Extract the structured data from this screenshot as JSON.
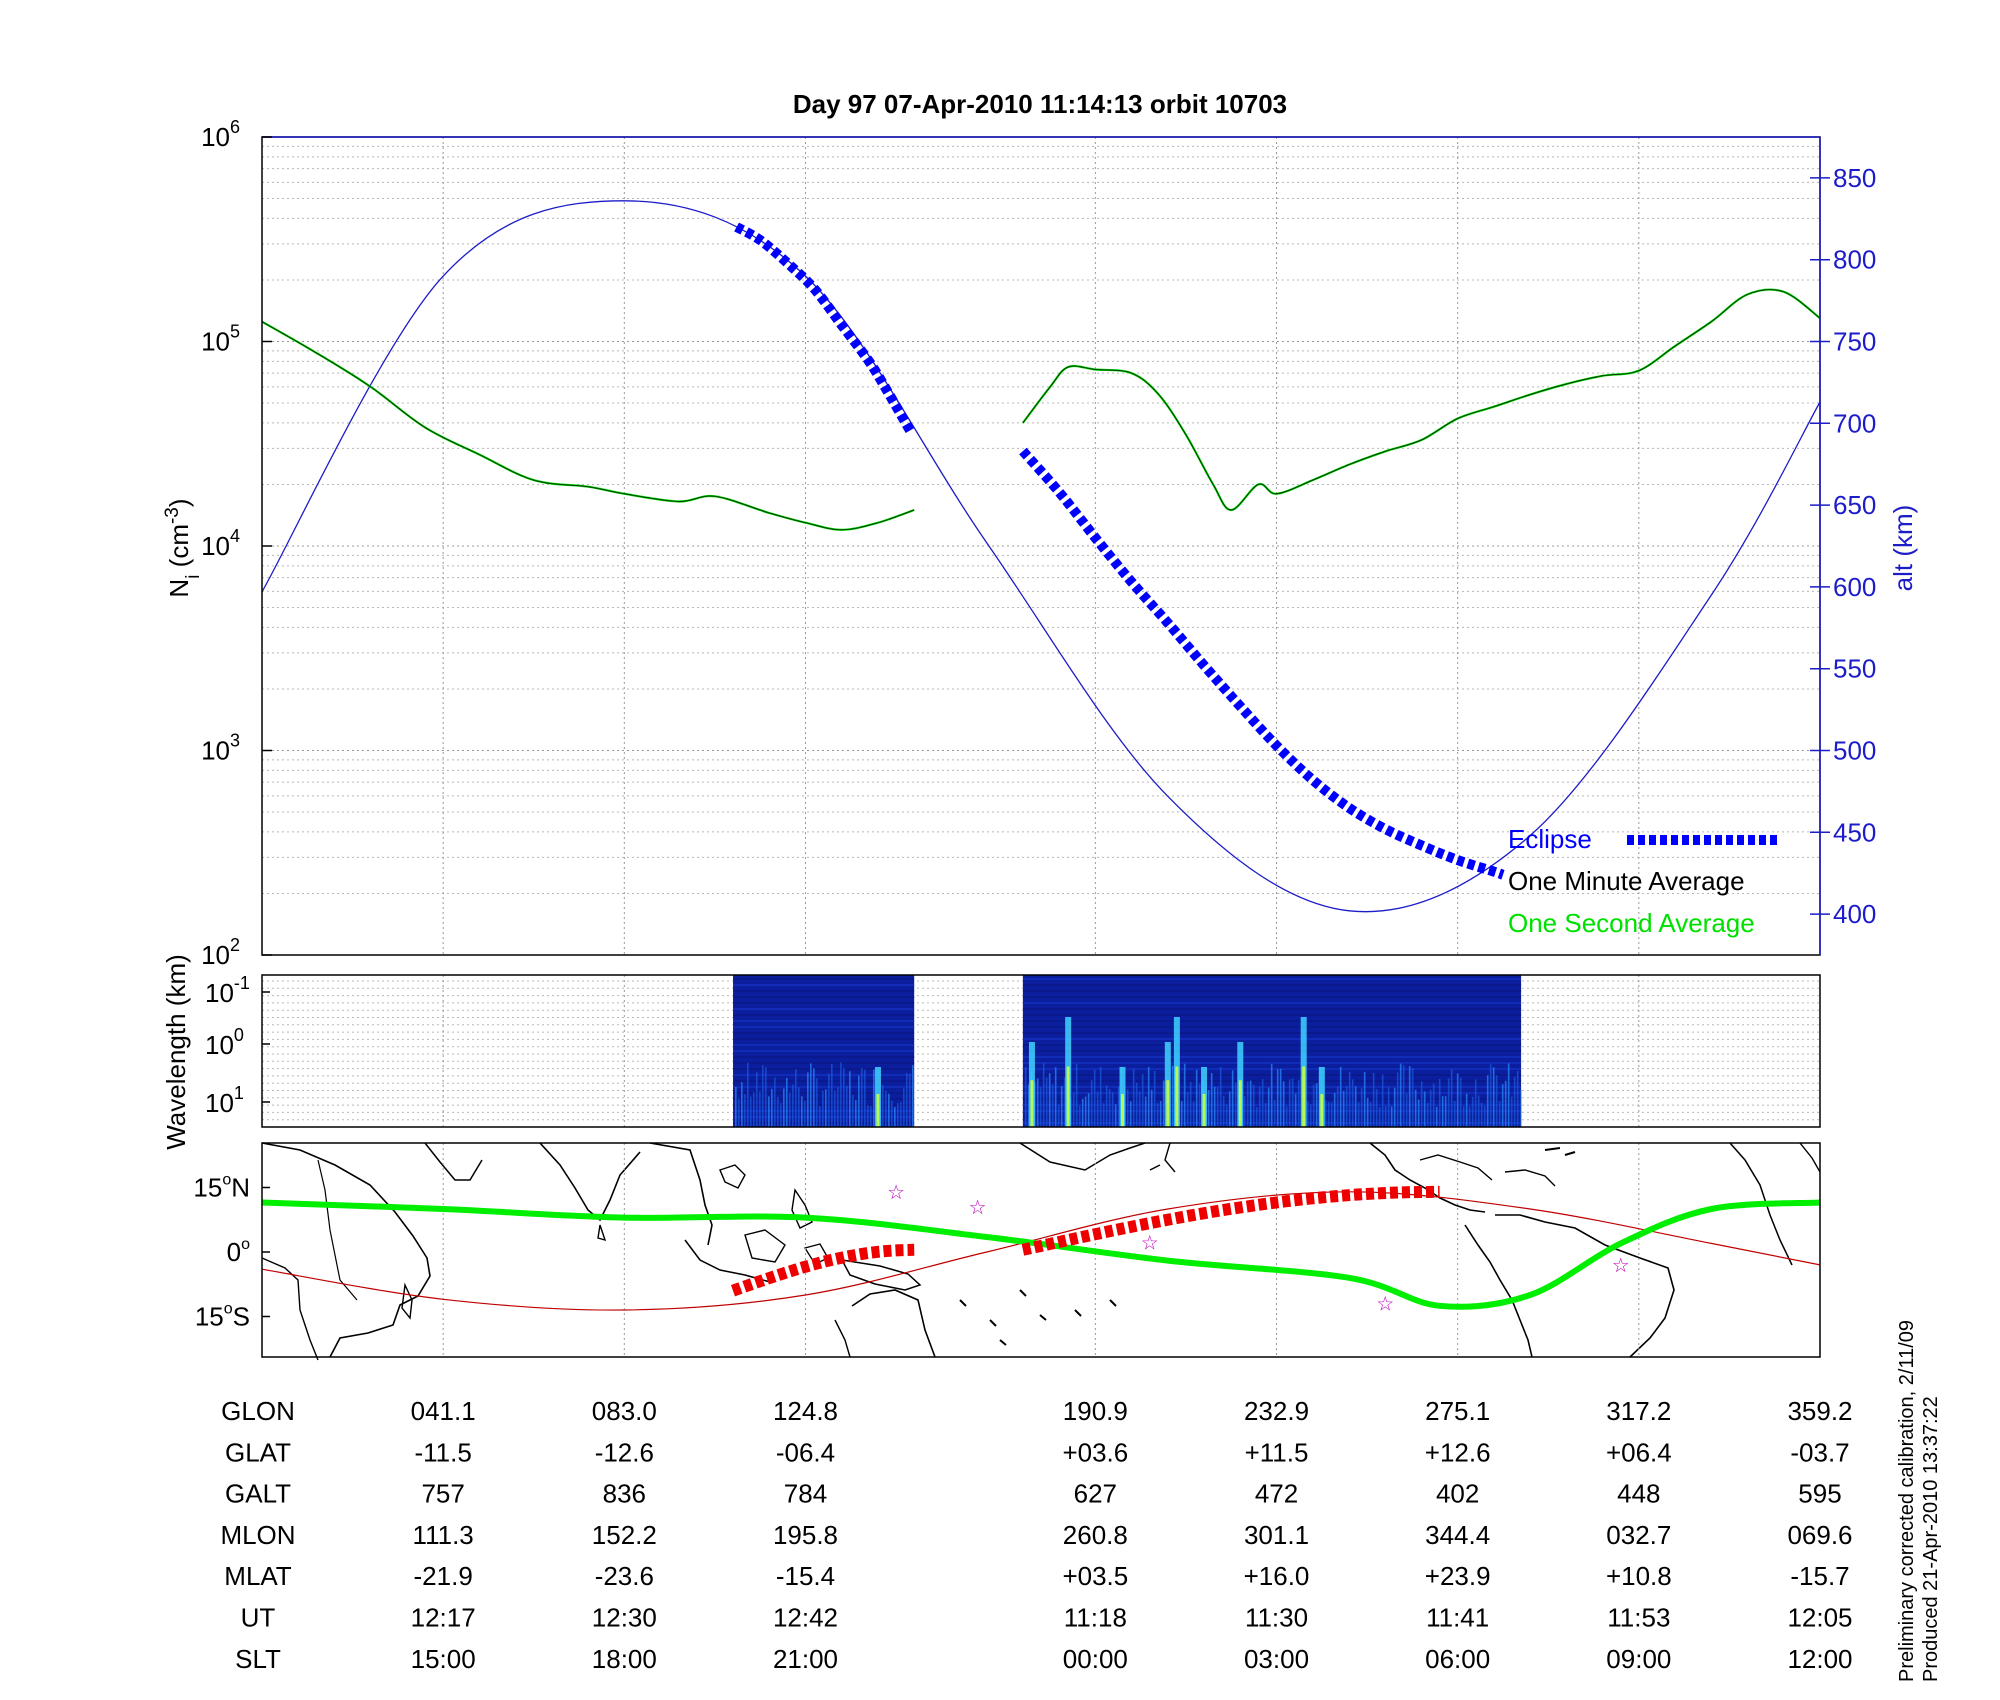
{
  "title": "Day 97  07-Apr-2010 11:14:13   orbit 10703",
  "side_note": [
    "Preliminary corrected calibration, 2/11/09",
    "Produced 21-Apr-2010 13:37:22"
  ],
  "colors": {
    "alt_axis": "#1c1cc8",
    "eclipse": "#0000ff",
    "one_minute": "#000000",
    "one_second": "#00e000",
    "orbit_track": "#00ee00",
    "orbit_eclipse": "#ee0000",
    "reference_line": "#c00000",
    "stars": "#c000c0"
  },
  "chart_data": [
    {
      "type": "line",
      "ylabel_main": "N",
      "ylabel_sub": "i",
      "ylabel_unit": " (cm",
      "ylabel_exp": "-3",
      "ylabel_close": ")",
      "y_scale": "log",
      "ylim": [
        100,
        1000000
      ],
      "y_ticks": [
        {
          "value": 100,
          "base": "10",
          "exp": "2"
        },
        {
          "value": 1000,
          "base": "10",
          "exp": "3"
        },
        {
          "value": 10000,
          "base": "10",
          "exp": "4"
        },
        {
          "value": 100000,
          "base": "10",
          "exp": "5"
        },
        {
          "value": 1000000,
          "base": "10",
          "exp": "6"
        }
      ],
      "y2label": "alt (km)",
      "y2lim": [
        375,
        875
      ],
      "y2_ticks": [
        400,
        450,
        500,
        550,
        600,
        650,
        700,
        750,
        800,
        850
      ],
      "xlim": [
        0,
        8.6
      ],
      "grid": true,
      "legend_position": "bottom-right",
      "legend": [
        "Eclipse",
        "One Minute Average",
        "One Second Average"
      ],
      "altitude_km": [
        [
          0,
          597
        ],
        [
          1,
          790
        ],
        [
          2,
          836
        ],
        [
          3,
          790
        ],
        [
          4,
          627
        ],
        [
          5,
          472
        ],
        [
          6,
          402
        ],
        [
          7,
          448
        ],
        [
          8,
          595
        ],
        [
          8.6,
          713
        ]
      ],
      "eclipse_segments": [
        {
          "x": [
            2.62,
            2.75,
            2.9,
            3.05,
            3.2,
            3.35,
            3.45,
            3.58
          ],
          "alt_km": [
            820,
            812,
            798,
            782,
            760,
            738,
            720,
            695
          ]
        },
        {
          "x": [
            4.2,
            4.4,
            4.6,
            4.8,
            5.0,
            5.2,
            5.4,
            5.6,
            5.8,
            6.0,
            6.2,
            6.4,
            6.6,
            6.8,
            6.85
          ],
          "alt_km": [
            683,
            658,
            630,
            603,
            578,
            552,
            527,
            503,
            482,
            465,
            452,
            442,
            433,
            426,
            424
          ]
        }
      ],
      "ni_one_minute_segments": [
        {
          "x": [
            0,
            0.3,
            0.6,
            0.9,
            1.2,
            1.5,
            1.8,
            2.0,
            2.3,
            2.5,
            2.8,
            3.0,
            3.2,
            3.4,
            3.6
          ],
          "y": [
            125000,
            88000,
            60000,
            38000,
            28000,
            21000,
            19500,
            18000,
            16500,
            17500,
            14500,
            13000,
            12000,
            13000,
            15000
          ]
        },
        {
          "x": [
            4.2,
            4.35,
            4.45,
            4.6,
            4.8,
            4.95,
            5.1,
            5.25,
            5.35,
            5.5,
            5.6,
            5.8,
            6.0,
            6.2,
            6.4,
            6.6,
            6.8,
            7.0,
            7.2,
            7.4,
            7.6,
            7.8,
            8.0,
            8.2,
            8.4,
            8.6
          ],
          "y": [
            40000,
            60000,
            75000,
            73000,
            70000,
            55000,
            35000,
            20000,
            15000,
            20000,
            18000,
            21000,
            25000,
            29000,
            33000,
            42000,
            48000,
            55000,
            62000,
            68000,
            72000,
            95000,
            125000,
            170000,
            175000,
            130000
          ]
        }
      ]
    },
    {
      "type": "heatmap",
      "ylabel": "Wavelength (km)",
      "y_scale": "log",
      "y_ticks": [
        {
          "base": "10",
          "exp": "-1"
        },
        {
          "base": "10",
          "exp": "0"
        },
        {
          "base": "10",
          "exp": "1"
        }
      ],
      "data_blocks": [
        [
          2.6,
          3.6
        ],
        [
          4.2,
          6.95
        ]
      ],
      "bright_features_x": [
        3.4,
        4.25,
        4.45,
        4.75,
        5.0,
        5.05,
        5.2,
        5.4,
        5.75,
        5.85
      ]
    },
    {
      "type": "map",
      "y_ticks": [
        {
          "label": "15",
          "hemisphere": "N"
        },
        {
          "label": "0",
          "hemisphere": ""
        },
        {
          "label": "15",
          "hemisphere": "S"
        }
      ],
      "orbit_track_lat": [
        [
          0,
          11.5
        ],
        [
          1,
          10
        ],
        [
          2,
          8
        ],
        [
          3,
          8
        ],
        [
          4,
          3.5
        ],
        [
          5,
          -2
        ],
        [
          6,
          -6
        ],
        [
          6.5,
          -12.5
        ],
        [
          7,
          -10
        ],
        [
          7.5,
          2
        ],
        [
          8,
          10
        ],
        [
          8.6,
          11.5
        ]
      ],
      "reference_track_lat": [
        [
          0,
          -4
        ],
        [
          1,
          -11
        ],
        [
          2,
          -13.5
        ],
        [
          3,
          -10
        ],
        [
          4,
          0
        ],
        [
          5,
          10
        ],
        [
          6,
          14
        ],
        [
          7,
          10
        ],
        [
          8,
          2
        ],
        [
          8.6,
          -3
        ]
      ],
      "eclipse_tracks": [
        {
          "x_from": 2.6,
          "x_to": 3.6,
          "lat_from": -9,
          "lat_to": 0.5
        },
        {
          "x_from": 4.2,
          "x_to": 6.5,
          "lat_from": 0.5,
          "lat_to": 14
        }
      ]
    }
  ],
  "ephemeris_table": {
    "x": [
      1,
      2,
      3,
      4.6,
      5.6,
      6.6,
      7.6,
      8.6
    ],
    "rows": [
      {
        "label": "GLON",
        "values": [
          "041.1",
          "083.0",
          "124.8",
          "190.9",
          "232.9",
          "275.1",
          "317.2",
          "359.2"
        ]
      },
      {
        "label": "GLAT",
        "values": [
          "-11.5",
          "-12.6",
          "-06.4",
          "+03.6",
          "+11.5",
          "+12.6",
          "+06.4",
          "-03.7"
        ]
      },
      {
        "label": "GALT",
        "values": [
          "757",
          "836",
          "784",
          "627",
          "472",
          "402",
          "448",
          "595"
        ]
      },
      {
        "label": "MLON",
        "values": [
          "111.3",
          "152.2",
          "195.8",
          "260.8",
          "301.1",
          "344.4",
          "032.7",
          "069.6"
        ]
      },
      {
        "label": "MLAT",
        "values": [
          "-21.9",
          "-23.6",
          "-15.4",
          "+03.5",
          "+16.0",
          "+23.9",
          "+10.8",
          "-15.7"
        ]
      },
      {
        "label": "UT",
        "values": [
          "12:17",
          "12:30",
          "12:42",
          "11:18",
          "11:30",
          "11:41",
          "11:53",
          "12:05"
        ]
      },
      {
        "label": "SLT",
        "values": [
          "15:00",
          "18:00",
          "21:00",
          "00:00",
          "03:00",
          "06:00",
          "09:00",
          "12:00"
        ]
      }
    ]
  }
}
